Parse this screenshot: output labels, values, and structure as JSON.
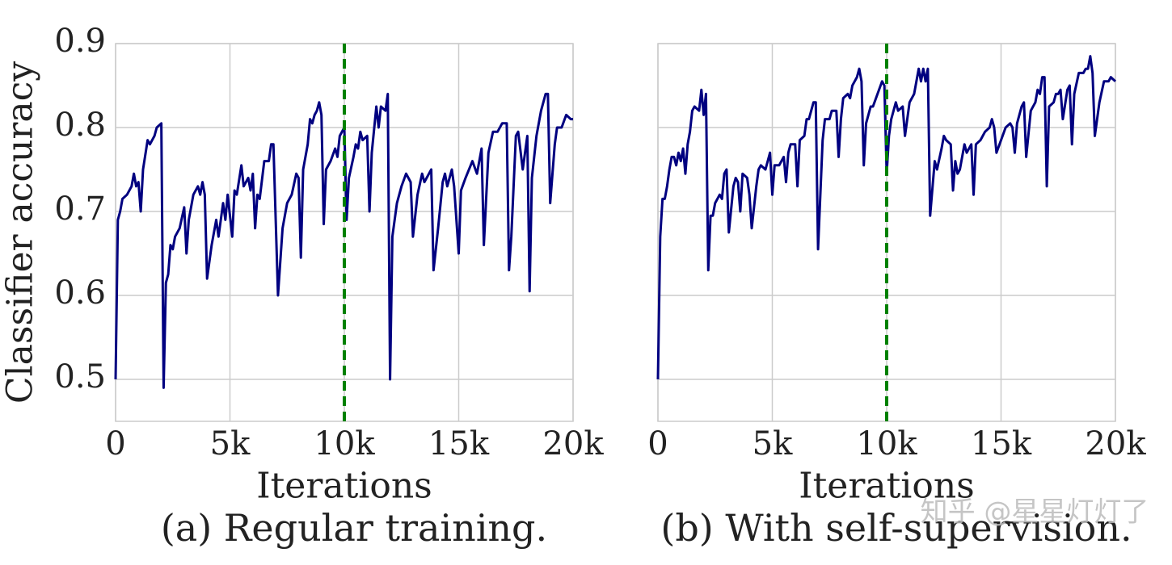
{
  "chart_data": [
    {
      "type": "line",
      "ylabel": "Classifier accuracy",
      "xlabel": "Iterations",
      "caption": "(a) Regular training.",
      "color": "#000080",
      "xlim": [
        0,
        20000
      ],
      "xticks": [
        0,
        {
          "value": 5000,
          "label": "5k"
        },
        {
          "value": 10000,
          "label": "10k"
        },
        {
          "value": 15000,
          "label": "15k"
        },
        {
          "value": 20000,
          "label": "20k"
        }
      ],
      "ylim": [
        0.45,
        0.9
      ],
      "yticks": [
        0.5,
        0.6,
        0.7,
        0.8,
        0.9
      ],
      "ytick_labels": true,
      "grid": true,
      "vline": {
        "x": 10000,
        "color": "#008000",
        "style": "dashed"
      },
      "x": [
        0,
        100,
        200,
        300,
        500,
        700,
        800,
        900,
        1000,
        1100,
        1200,
        1400,
        1500,
        1700,
        1800,
        2000,
        2100,
        2200,
        2300,
        2400,
        2500,
        2600,
        2800,
        3000,
        3100,
        3200,
        3400,
        3600,
        3700,
        3800,
        3900,
        4000,
        4200,
        4400,
        4500,
        4700,
        4800,
        4900,
        5100,
        5200,
        5300,
        5500,
        5600,
        5800,
        5900,
        6000,
        6100,
        6200,
        6300,
        6500,
        6700,
        6800,
        6900,
        7100,
        7300,
        7500,
        7700,
        7900,
        8000,
        8100,
        8200,
        8400,
        8500,
        8600,
        8700,
        8800,
        8900,
        9000,
        9100,
        9200,
        9400,
        9600,
        9700,
        9800,
        10000,
        10100,
        10200,
        10400,
        10500,
        10600,
        10700,
        10800,
        11000,
        11100,
        11200,
        11400,
        11500,
        11600,
        11800,
        11900,
        12000,
        12100,
        12300,
        12500,
        12700,
        12800,
        12900,
        13000,
        13200,
        13400,
        13500,
        13700,
        13800,
        13900,
        14100,
        14300,
        14400,
        14500,
        14700,
        14800,
        15000,
        15100,
        15300,
        15600,
        15800,
        16000,
        16100,
        16300,
        16500,
        16700,
        16900,
        17100,
        17200,
        17300,
        17500,
        17600,
        17800,
        18000,
        18100,
        18200,
        18400,
        18600,
        18800,
        18900,
        19000,
        19200,
        19300,
        19500,
        19700,
        19900,
        20000
      ],
      "values": [
        0.5,
        0.69,
        0.7,
        0.715,
        0.72,
        0.73,
        0.745,
        0.73,
        0.735,
        0.7,
        0.75,
        0.785,
        0.78,
        0.79,
        0.8,
        0.805,
        0.49,
        0.615,
        0.625,
        0.66,
        0.655,
        0.67,
        0.68,
        0.705,
        0.65,
        0.69,
        0.72,
        0.73,
        0.72,
        0.735,
        0.72,
        0.62,
        0.66,
        0.69,
        0.67,
        0.71,
        0.69,
        0.72,
        0.67,
        0.725,
        0.72,
        0.755,
        0.73,
        0.74,
        0.725,
        0.745,
        0.68,
        0.72,
        0.715,
        0.76,
        0.76,
        0.78,
        0.78,
        0.6,
        0.68,
        0.71,
        0.72,
        0.745,
        0.74,
        0.645,
        0.75,
        0.78,
        0.81,
        0.805,
        0.815,
        0.82,
        0.83,
        0.815,
        0.685,
        0.75,
        0.76,
        0.775,
        0.765,
        0.79,
        0.8,
        0.69,
        0.74,
        0.765,
        0.78,
        0.775,
        0.795,
        0.785,
        0.79,
        0.7,
        0.77,
        0.825,
        0.8,
        0.825,
        0.82,
        0.84,
        0.5,
        0.67,
        0.71,
        0.73,
        0.745,
        0.74,
        0.735,
        0.67,
        0.72,
        0.745,
        0.735,
        0.745,
        0.75,
        0.63,
        0.68,
        0.735,
        0.745,
        0.73,
        0.75,
        0.73,
        0.65,
        0.725,
        0.74,
        0.76,
        0.745,
        0.775,
        0.66,
        0.77,
        0.795,
        0.795,
        0.805,
        0.805,
        0.63,
        0.67,
        0.79,
        0.795,
        0.75,
        0.79,
        0.605,
        0.74,
        0.79,
        0.82,
        0.84,
        0.84,
        0.71,
        0.78,
        0.8,
        0.8,
        0.815,
        0.81,
        0.81
      ]
    },
    {
      "type": "line",
      "xlabel": "Iterations",
      "caption": "(b) With self-supervision.",
      "color": "#000080",
      "xlim": [
        0,
        20000
      ],
      "xticks": [
        0,
        {
          "value": 5000,
          "label": "5k"
        },
        {
          "value": 10000,
          "label": "10k"
        },
        {
          "value": 15000,
          "label": "15k"
        },
        {
          "value": 20000,
          "label": "20k"
        }
      ],
      "ylim": [
        0.45,
        0.9
      ],
      "yticks": [
        0.5,
        0.6,
        0.7,
        0.8,
        0.9
      ],
      "ytick_labels": false,
      "grid": true,
      "vline": {
        "x": 10000,
        "color": "#008000",
        "style": "dashed"
      },
      "x": [
        0,
        100,
        200,
        300,
        400,
        500,
        600,
        700,
        800,
        900,
        1000,
        1100,
        1200,
        1300,
        1400,
        1500,
        1600,
        1800,
        1900,
        2000,
        2100,
        2200,
        2300,
        2400,
        2500,
        2700,
        2800,
        2900,
        3000,
        3100,
        3300,
        3400,
        3500,
        3600,
        3700,
        3900,
        4000,
        4100,
        4300,
        4400,
        4500,
        4700,
        4800,
        4900,
        5000,
        5100,
        5300,
        5500,
        5600,
        5700,
        5800,
        6000,
        6100,
        6200,
        6400,
        6500,
        6600,
        6700,
        6800,
        6900,
        7000,
        7200,
        7300,
        7500,
        7600,
        7800,
        7900,
        8000,
        8100,
        8300,
        8400,
        8500,
        8600,
        8700,
        8800,
        8900,
        9000,
        9100,
        9300,
        9400,
        9600,
        9800,
        9900,
        10000,
        10100,
        10200,
        10400,
        10500,
        10700,
        10800,
        11000,
        11200,
        11300,
        11400,
        11500,
        11600,
        11700,
        11800,
        11900,
        12100,
        12200,
        12400,
        12500,
        12600,
        12800,
        12900,
        13000,
        13100,
        13200,
        13400,
        13500,
        13700,
        13800,
        13900,
        14100,
        14300,
        14500,
        14600,
        14700,
        14800,
        15000,
        15200,
        15400,
        15500,
        15600,
        15700,
        15900,
        16000,
        16100,
        16300,
        16500,
        16600,
        16700,
        16800,
        16900,
        17000,
        17100,
        17300,
        17400,
        17500,
        17600,
        17700,
        17900,
        18000,
        18100,
        18200,
        18400,
        18600,
        18700,
        18800,
        18900,
        19000,
        19100,
        19300,
        19500,
        19700,
        19800,
        20000
      ],
      "values": [
        0.5,
        0.67,
        0.715,
        0.715,
        0.73,
        0.75,
        0.765,
        0.765,
        0.755,
        0.77,
        0.76,
        0.775,
        0.745,
        0.78,
        0.795,
        0.82,
        0.825,
        0.82,
        0.845,
        0.815,
        0.84,
        0.63,
        0.695,
        0.695,
        0.71,
        0.72,
        0.715,
        0.745,
        0.75,
        0.675,
        0.73,
        0.74,
        0.735,
        0.7,
        0.745,
        0.74,
        0.72,
        0.68,
        0.73,
        0.75,
        0.755,
        0.75,
        0.76,
        0.77,
        0.72,
        0.755,
        0.755,
        0.765,
        0.735,
        0.77,
        0.78,
        0.78,
        0.73,
        0.785,
        0.79,
        0.81,
        0.81,
        0.82,
        0.83,
        0.83,
        0.655,
        0.785,
        0.81,
        0.81,
        0.82,
        0.82,
        0.765,
        0.81,
        0.835,
        0.84,
        0.835,
        0.85,
        0.855,
        0.86,
        0.87,
        0.855,
        0.755,
        0.805,
        0.825,
        0.825,
        0.84,
        0.855,
        0.85,
        0.745,
        0.79,
        0.81,
        0.83,
        0.82,
        0.825,
        0.79,
        0.83,
        0.84,
        0.855,
        0.87,
        0.855,
        0.87,
        0.855,
        0.87,
        0.695,
        0.76,
        0.75,
        0.775,
        0.79,
        0.785,
        0.78,
        0.725,
        0.76,
        0.745,
        0.75,
        0.78,
        0.77,
        0.78,
        0.72,
        0.78,
        0.785,
        0.795,
        0.8,
        0.81,
        0.8,
        0.77,
        0.785,
        0.8,
        0.805,
        0.8,
        0.77,
        0.805,
        0.825,
        0.83,
        0.765,
        0.82,
        0.83,
        0.845,
        0.84,
        0.86,
        0.86,
        0.73,
        0.825,
        0.83,
        0.84,
        0.84,
        0.845,
        0.81,
        0.845,
        0.85,
        0.78,
        0.84,
        0.865,
        0.865,
        0.87,
        0.87,
        0.885,
        0.865,
        0.79,
        0.83,
        0.855,
        0.855,
        0.86,
        0.855
      ]
    }
  ],
  "watermark": "知乎 @星星灯灯了"
}
